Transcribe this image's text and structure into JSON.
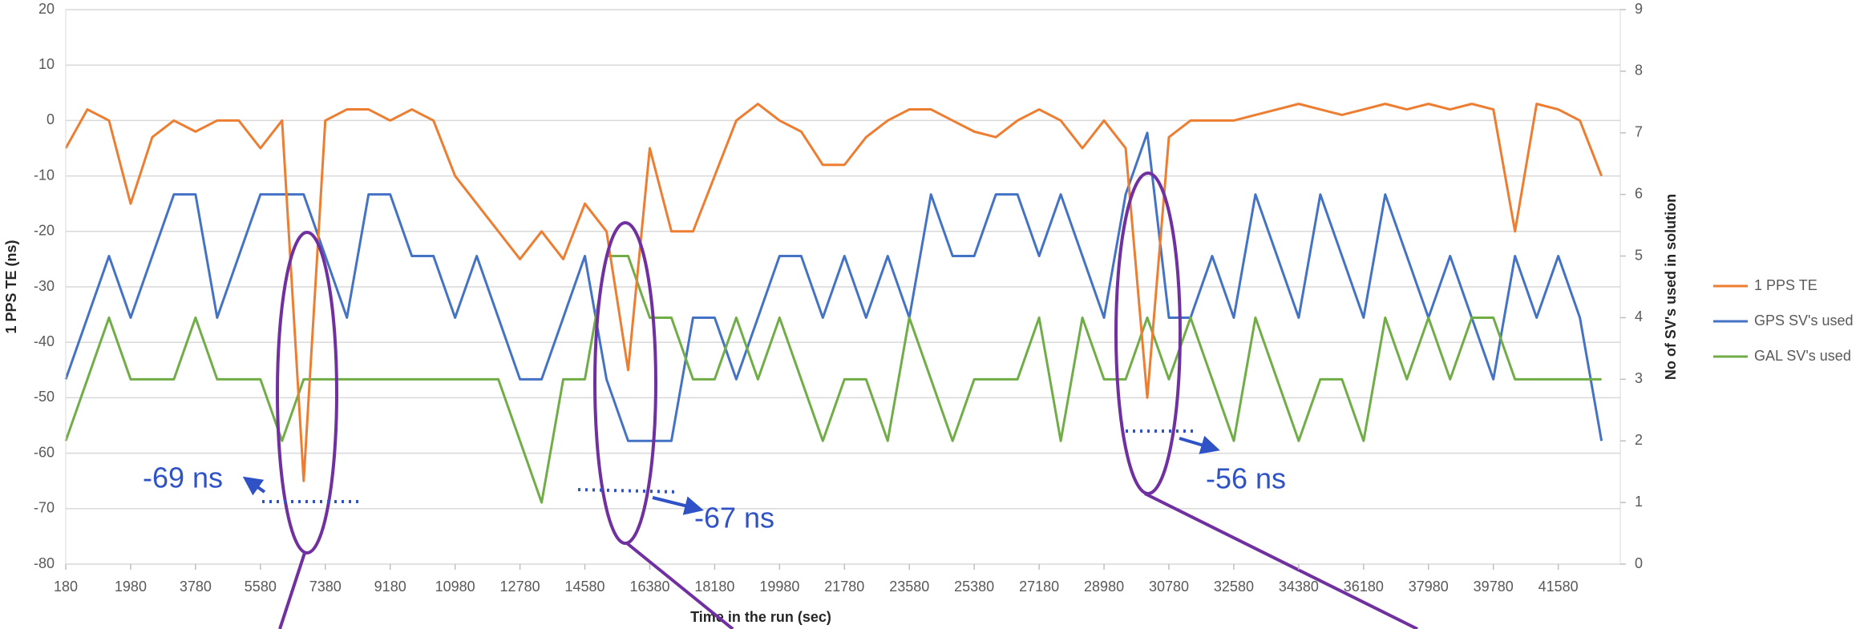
{
  "chart_data": {
    "type": "line",
    "xlabel": "Time in the run (sec)",
    "ylabel": "1 PPS TE (ns)",
    "y2label": "No of SV's used in solution",
    "x": [
      180,
      780,
      1380,
      1980,
      2580,
      3180,
      3780,
      4380,
      4980,
      5580,
      6180,
      6780,
      7380,
      7980,
      8580,
      9180,
      9780,
      10380,
      10980,
      11580,
      12180,
      12780,
      13380,
      13980,
      14580,
      15180,
      15780,
      16380,
      16980,
      17580,
      18180,
      18780,
      19380,
      19980,
      20580,
      21180,
      21780,
      22380,
      22980,
      23580,
      24180,
      24780,
      25380,
      25980,
      26580,
      27180,
      27780,
      28380,
      28980,
      29580,
      30180,
      30780,
      31380,
      31980,
      32580,
      33180,
      33780,
      34380,
      34980,
      35580,
      36180,
      36780,
      37380,
      37980,
      38580,
      39180,
      39780,
      40380,
      40980,
      41580,
      42180,
      42780
    ],
    "series": [
      {
        "name": "1 PPS TE",
        "color": "#ed7d31",
        "values": [
          -5,
          2,
          0,
          -15,
          -3,
          0,
          -2,
          0,
          0,
          -5,
          0,
          -65,
          0,
          2,
          2,
          0,
          2,
          0,
          -10,
          -15,
          -20,
          -25,
          -20,
          -25,
          -15,
          -20,
          -45,
          -5,
          -20,
          -20,
          -10,
          0,
          3,
          0,
          -2,
          -8,
          -8,
          -3,
          0,
          2,
          2,
          0,
          -2,
          -3,
          0,
          2,
          0,
          -5,
          0,
          -5,
          -50,
          -3,
          0,
          0,
          0,
          1,
          2,
          3,
          2,
          1,
          2,
          3,
          2,
          3,
          2,
          3,
          2,
          -20,
          3,
          2,
          0,
          -10
        ]
      },
      {
        "name": "GPS SV's used",
        "color": "#4472c4",
        "axis": "y2",
        "values": [
          3,
          4,
          5,
          4,
          5,
          6,
          6,
          4,
          5,
          6,
          6,
          6,
          5,
          4,
          6,
          6,
          5,
          5,
          4,
          5,
          4,
          3,
          3,
          4,
          5,
          3,
          2,
          2,
          2,
          4,
          4,
          3,
          4,
          5,
          5,
          4,
          5,
          4,
          5,
          4,
          6,
          5,
          5,
          6,
          6,
          5,
          6,
          5,
          4,
          6,
          7,
          4,
          4,
          5,
          4,
          6,
          5,
          4,
          6,
          5,
          4,
          6,
          5,
          4,
          5,
          4,
          3,
          5,
          4,
          5,
          4,
          2
        ]
      },
      {
        "name": "GAL SV's used",
        "color": "#70ad47",
        "axis": "y2",
        "values": [
          2,
          3,
          4,
          3,
          3,
          3,
          4,
          3,
          3,
          3,
          2,
          3,
          3,
          3,
          3,
          3,
          3,
          3,
          3,
          3,
          3,
          2,
          1,
          3,
          3,
          5,
          5,
          4,
          4,
          3,
          3,
          4,
          3,
          4,
          3,
          2,
          3,
          3,
          2,
          4,
          3,
          2,
          3,
          3,
          3,
          4,
          2,
          4,
          3,
          3,
          4,
          3,
          4,
          3,
          2,
          4,
          3,
          2,
          3,
          3,
          2,
          4,
          3,
          4,
          3,
          4,
          4,
          3,
          3,
          3,
          3,
          3
        ]
      }
    ],
    "xlim": [
      180,
      43300
    ],
    "xticks": [
      180,
      1980,
      3780,
      5580,
      7380,
      9180,
      10980,
      12780,
      14580,
      16380,
      18180,
      19980,
      21780,
      23580,
      25380,
      27180,
      28980,
      30780,
      32580,
      34380,
      36180,
      37980,
      39780,
      41580
    ],
    "ylim": [
      -80,
      20
    ],
    "yticks": [
      -80,
      -70,
      -60,
      -50,
      -40,
      -30,
      -20,
      -10,
      0,
      10,
      20
    ],
    "y2lim": [
      0,
      9
    ],
    "y2ticks": [
      0,
      1,
      2,
      3,
      4,
      5,
      6,
      7,
      8,
      9
    ],
    "grid": true,
    "legend": "right",
    "annotations": [
      "-69 ns",
      "-67 ns",
      "-56 ns"
    ]
  }
}
